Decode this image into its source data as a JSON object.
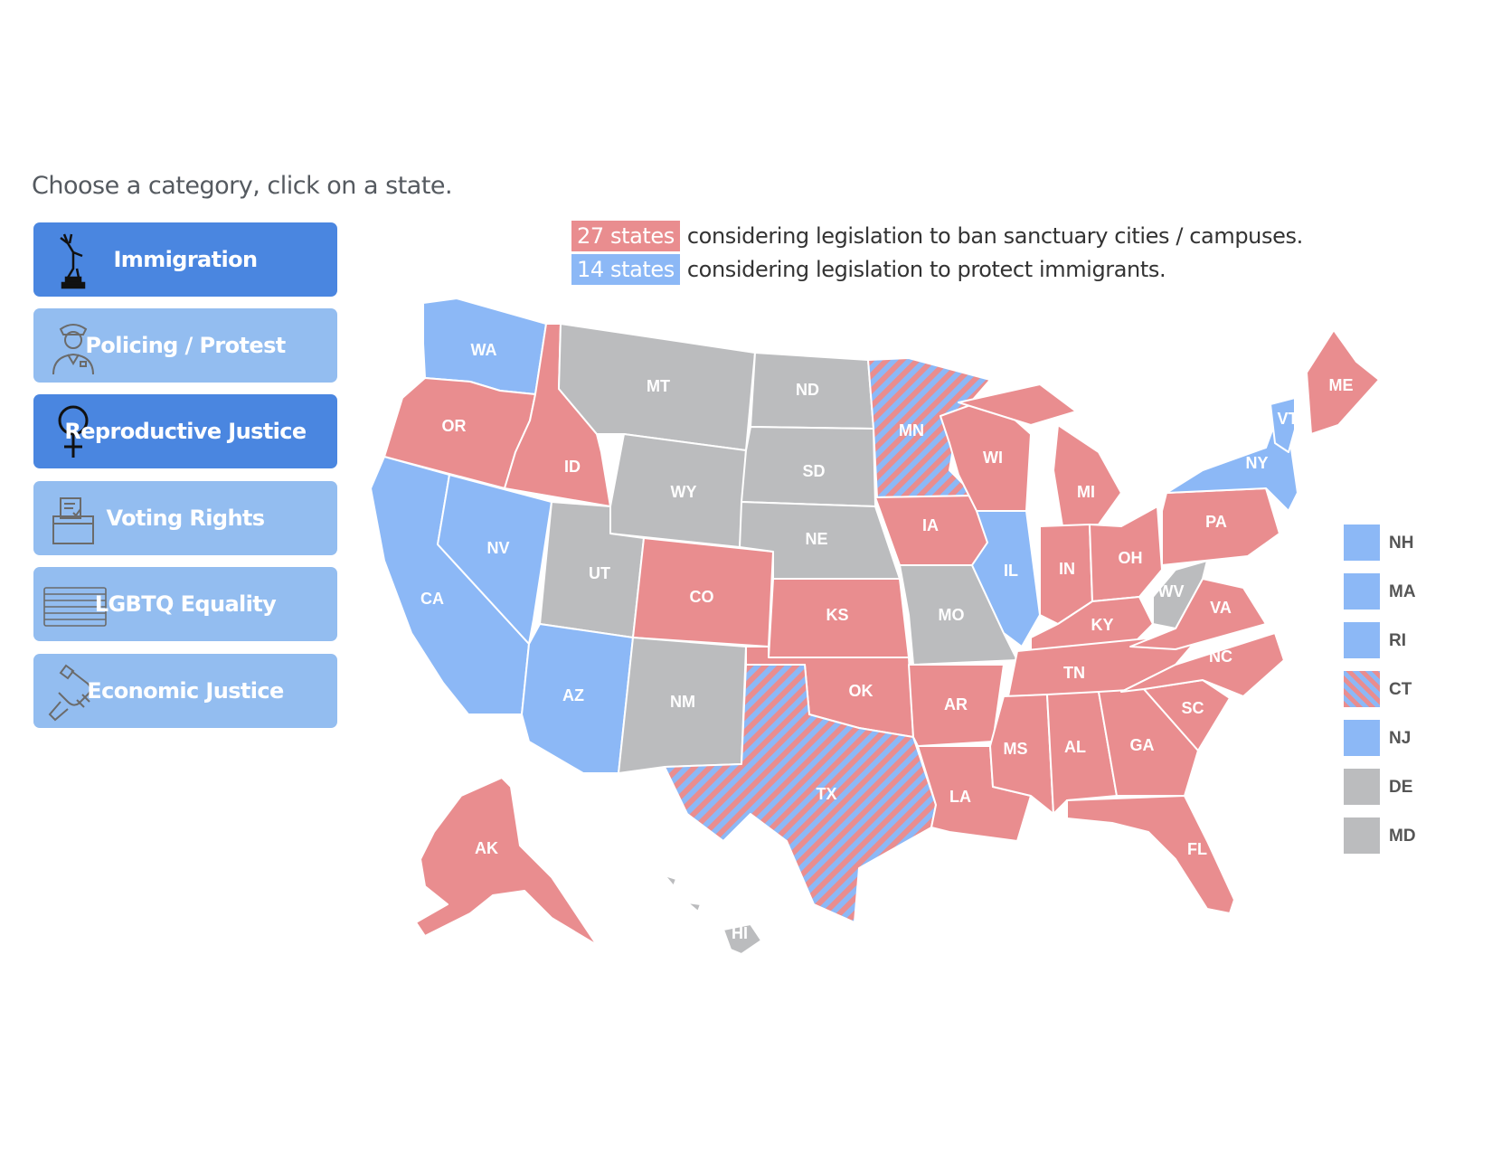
{
  "instruction": "Choose a category, click on a state.",
  "categories": [
    {
      "label": "Immigration",
      "icon": "statue-of-liberty-icon",
      "active": true
    },
    {
      "label": "Policing / Protest",
      "icon": "police-officer-icon",
      "active": false
    },
    {
      "label": "Reproductive Justice",
      "icon": "female-symbol-icon",
      "active": true
    },
    {
      "label": "Voting Rights",
      "icon": "ballot-box-icon",
      "active": false
    },
    {
      "label": "LGBTQ Equality",
      "icon": "flag-icon",
      "active": false
    },
    {
      "label": "Economic Justice",
      "icon": "raised-fist-icon",
      "active": false
    }
  ],
  "legend": {
    "ban": {
      "count": "27 states",
      "text": "considering legislation to ban sanctuary cities / campuses."
    },
    "protect": {
      "count": "14 states",
      "text": "considering legislation to protect immigrants."
    }
  },
  "colors": {
    "ban": "#e98d8f",
    "protect": "#8cb8f6",
    "neutral": "#bbbcbe",
    "both": "striped"
  },
  "states": {
    "WA": "protect",
    "OR": "ban",
    "CA": "protect",
    "NV": "protect",
    "ID": "ban",
    "MT": "neutral",
    "WY": "neutral",
    "UT": "neutral",
    "AZ": "protect",
    "CO": "ban",
    "NM": "neutral",
    "ND": "neutral",
    "SD": "neutral",
    "NE": "neutral",
    "KS": "ban",
    "OK": "ban",
    "TX": "both",
    "MN": "both",
    "IA": "ban",
    "MO": "neutral",
    "AR": "ban",
    "LA": "ban",
    "WI": "ban",
    "IL": "protect",
    "MI": "ban",
    "IN": "ban",
    "OH": "ban",
    "KY": "ban",
    "TN": "ban",
    "MS": "ban",
    "AL": "ban",
    "GA": "ban",
    "FL": "ban",
    "SC": "ban",
    "NC": "ban",
    "VA": "ban",
    "WV": "neutral",
    "PA": "ban",
    "NY": "protect",
    "VT": "protect",
    "ME": "ban",
    "AK": "ban",
    "HI": "neutral"
  },
  "northeast": [
    {
      "abbr": "NH",
      "status": "protect"
    },
    {
      "abbr": "MA",
      "status": "protect"
    },
    {
      "abbr": "RI",
      "status": "protect"
    },
    {
      "abbr": "CT",
      "status": "both"
    },
    {
      "abbr": "NJ",
      "status": "protect"
    },
    {
      "abbr": "DE",
      "status": "neutral"
    },
    {
      "abbr": "MD",
      "status": "neutral"
    }
  ]
}
